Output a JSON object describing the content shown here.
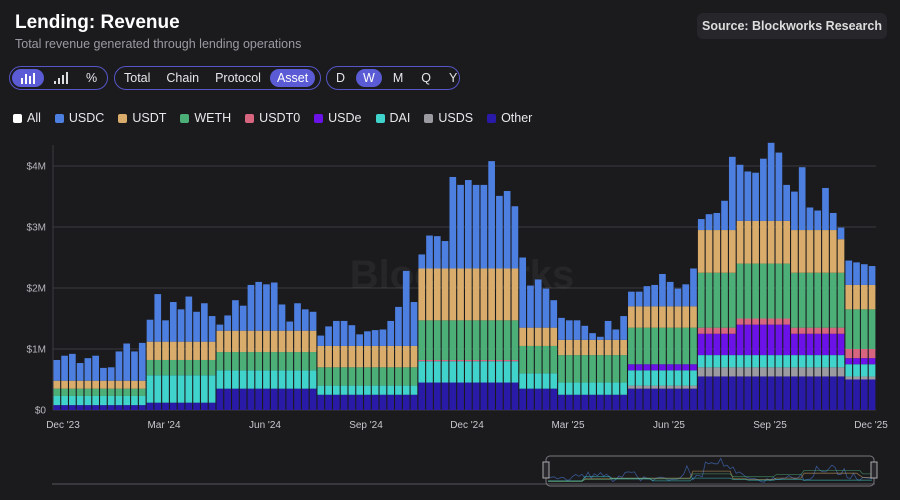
{
  "header": {
    "title": "Lending: Revenue",
    "subtitle": "Total revenue generated through lending operations",
    "source": "Source: Blockworks Research"
  },
  "toolbar": {
    "chart_types": [
      {
        "icon": "bar-chart-icon",
        "active": true
      },
      {
        "icon": "ascending-bars-icon",
        "active": false
      },
      {
        "icon": "percent-icon",
        "label": "%",
        "active": false
      }
    ],
    "breakdown": [
      {
        "label": "Total",
        "active": false
      },
      {
        "label": "Chain",
        "active": false
      },
      {
        "label": "Protocol",
        "active": false
      },
      {
        "label": "Asset",
        "active": true
      }
    ],
    "interval": [
      {
        "label": "D",
        "active": false
      },
      {
        "label": "W",
        "active": true
      },
      {
        "label": "M",
        "active": false
      },
      {
        "label": "Q",
        "active": false
      },
      {
        "label": "Y",
        "active": false
      }
    ]
  },
  "legend": [
    {
      "label": "All",
      "color": "#ffffff"
    },
    {
      "label": "USDC",
      "color": "#4d7fe0"
    },
    {
      "label": "USDT",
      "color": "#d9ac6b"
    },
    {
      "label": "WETH",
      "color": "#4caf78"
    },
    {
      "label": "USDT0",
      "color": "#d8657f"
    },
    {
      "label": "USDe",
      "color": "#6a12e8"
    },
    {
      "label": "DAI",
      "color": "#3fd3cc"
    },
    {
      "label": "USDS",
      "color": "#9a9aa0"
    },
    {
      "label": "Other",
      "color": "#2a1aa8"
    }
  ],
  "watermark": "Blockworks",
  "chart_data": {
    "type": "bar",
    "stacked": true,
    "interval": "weekly",
    "title": "Lending: Revenue",
    "xlabel": "",
    "ylabel": "",
    "ylim": [
      0,
      4400000
    ],
    "unit": "USD millions",
    "grid": true,
    "legend_position": "top-left",
    "yticks": [
      "$0",
      "$1M",
      "$2M",
      "$3M",
      "$4M"
    ],
    "xticks": [
      "Dec '23",
      "Mar '24",
      "Jun '24",
      "Sep '24",
      "Dec '24",
      "Mar '25",
      "Jun '25",
      "Sep '25",
      "Dec '25"
    ],
    "series": [
      {
        "name": "Other",
        "values": [
          0.08,
          0.08,
          0.08,
          0.08,
          0.08,
          0.08,
          0.08,
          0.08,
          0.08,
          0.08,
          0.08,
          0.08,
          0.12,
          0.12,
          0.12,
          0.12,
          0.12,
          0.12,
          0.12,
          0.12,
          0.12,
          0.35,
          0.35,
          0.35,
          0.35,
          0.35,
          0.35,
          0.35,
          0.35,
          0.35,
          0.35,
          0.35,
          0.35,
          0.35,
          0.25,
          0.25,
          0.25,
          0.25,
          0.25,
          0.25,
          0.25,
          0.25,
          0.25,
          0.25,
          0.25,
          0.25,
          0.25,
          0.45,
          0.45,
          0.45,
          0.45,
          0.45,
          0.45,
          0.45,
          0.45,
          0.45,
          0.45,
          0.45,
          0.45,
          0.45,
          0.35,
          0.35,
          0.35,
          0.35,
          0.35,
          0.25,
          0.25,
          0.25,
          0.25,
          0.25,
          0.25,
          0.25,
          0.25,
          0.25,
          0.35,
          0.35,
          0.35,
          0.35,
          0.35,
          0.35,
          0.35,
          0.35,
          0.35,
          0.55,
          0.55,
          0.55,
          0.55,
          0.55,
          0.55,
          0.55,
          0.55,
          0.55,
          0.55,
          0.55,
          0.55,
          0.55,
          0.55,
          0.55,
          0.55,
          0.55,
          0.55,
          0.55,
          0.5,
          0.5,
          0.5,
          0.5
        ]
      },
      {
        "name": "USDS",
        "values": [
          0,
          0,
          0,
          0,
          0,
          0,
          0,
          0,
          0,
          0,
          0,
          0,
          0,
          0,
          0,
          0,
          0,
          0,
          0,
          0,
          0,
          0,
          0,
          0,
          0,
          0,
          0,
          0,
          0,
          0,
          0,
          0,
          0,
          0,
          0,
          0,
          0,
          0,
          0,
          0,
          0,
          0,
          0,
          0,
          0,
          0,
          0,
          0,
          0,
          0,
          0,
          0,
          0,
          0,
          0,
          0,
          0,
          0,
          0,
          0,
          0,
          0,
          0,
          0,
          0,
          0,
          0,
          0,
          0,
          0,
          0,
          0,
          0,
          0,
          0.05,
          0.05,
          0.05,
          0.05,
          0.05,
          0.05,
          0.05,
          0.05,
          0.05,
          0.15,
          0.15,
          0.15,
          0.15,
          0.15,
          0.15,
          0.15,
          0.15,
          0.15,
          0.15,
          0.15,
          0.15,
          0.15,
          0.15,
          0.15,
          0.15,
          0.15,
          0.15,
          0.15,
          0.05,
          0.05,
          0.05,
          0.05
        ]
      },
      {
        "name": "DAI",
        "values": [
          0.15,
          0.15,
          0.15,
          0.15,
          0.15,
          0.15,
          0.15,
          0.15,
          0.15,
          0.15,
          0.15,
          0.15,
          0.45,
          0.45,
          0.45,
          0.45,
          0.45,
          0.45,
          0.45,
          0.45,
          0.45,
          0.3,
          0.3,
          0.3,
          0.3,
          0.3,
          0.3,
          0.3,
          0.3,
          0.3,
          0.3,
          0.3,
          0.3,
          0.3,
          0.15,
          0.15,
          0.15,
          0.15,
          0.15,
          0.15,
          0.15,
          0.15,
          0.15,
          0.15,
          0.15,
          0.15,
          0.15,
          0.35,
          0.35,
          0.35,
          0.35,
          0.35,
          0.35,
          0.35,
          0.35,
          0.35,
          0.35,
          0.35,
          0.35,
          0.35,
          0.25,
          0.25,
          0.25,
          0.25,
          0.25,
          0.2,
          0.2,
          0.2,
          0.2,
          0.2,
          0.2,
          0.2,
          0.2,
          0.2,
          0.25,
          0.25,
          0.25,
          0.25,
          0.25,
          0.25,
          0.25,
          0.25,
          0.25,
          0.2,
          0.2,
          0.2,
          0.2,
          0.2,
          0.2,
          0.2,
          0.2,
          0.2,
          0.2,
          0.2,
          0.2,
          0.2,
          0.2,
          0.2,
          0.2,
          0.2,
          0.2,
          0.2,
          0.2,
          0.2,
          0.2,
          0.2
        ]
      },
      {
        "name": "USDe",
        "values": [
          0,
          0,
          0,
          0,
          0,
          0,
          0,
          0,
          0,
          0,
          0,
          0,
          0,
          0,
          0,
          0,
          0,
          0,
          0,
          0,
          0,
          0,
          0,
          0,
          0,
          0,
          0,
          0,
          0,
          0,
          0,
          0,
          0,
          0,
          0,
          0,
          0,
          0,
          0,
          0,
          0,
          0,
          0,
          0,
          0,
          0,
          0,
          0,
          0,
          0,
          0,
          0,
          0,
          0,
          0,
          0,
          0,
          0,
          0,
          0,
          0,
          0,
          0,
          0,
          0,
          0,
          0,
          0,
          0,
          0,
          0,
          0,
          0,
          0,
          0.1,
          0.1,
          0.1,
          0.1,
          0.1,
          0.1,
          0.1,
          0.1,
          0.1,
          0.35,
          0.35,
          0.35,
          0.35,
          0.35,
          0.5,
          0.5,
          0.5,
          0.5,
          0.5,
          0.5,
          0.5,
          0.35,
          0.35,
          0.35,
          0.35,
          0.35,
          0.35,
          0.35,
          0.1,
          0.1,
          0.1,
          0.1
        ]
      },
      {
        "name": "USDT0",
        "values": [
          0,
          0,
          0,
          0,
          0,
          0,
          0,
          0,
          0,
          0,
          0,
          0,
          0,
          0,
          0,
          0,
          0,
          0,
          0,
          0,
          0,
          0,
          0,
          0,
          0,
          0,
          0,
          0,
          0,
          0,
          0,
          0,
          0,
          0,
          0,
          0,
          0,
          0,
          0,
          0,
          0,
          0,
          0,
          0,
          0,
          0,
          0,
          0.02,
          0.02,
          0.02,
          0.02,
          0.02,
          0.02,
          0.02,
          0.02,
          0.02,
          0.02,
          0.02,
          0.02,
          0.02,
          0,
          0,
          0,
          0,
          0,
          0,
          0,
          0,
          0,
          0,
          0,
          0,
          0,
          0,
          0,
          0,
          0,
          0,
          0,
          0,
          0,
          0,
          0,
          0.1,
          0.1,
          0.1,
          0.1,
          0.1,
          0.1,
          0.1,
          0.1,
          0.1,
          0.1,
          0.1,
          0.1,
          0.1,
          0.1,
          0.1,
          0.1,
          0.1,
          0.1,
          0.1,
          0.15,
          0.15,
          0.15,
          0.15
        ]
      },
      {
        "name": "WETH",
        "values": [
          0.12,
          0.12,
          0.12,
          0.12,
          0.12,
          0.12,
          0.12,
          0.12,
          0.12,
          0.12,
          0.12,
          0.12,
          0.25,
          0.25,
          0.25,
          0.25,
          0.25,
          0.25,
          0.25,
          0.25,
          0.25,
          0.3,
          0.3,
          0.3,
          0.3,
          0.3,
          0.3,
          0.3,
          0.3,
          0.3,
          0.3,
          0.3,
          0.3,
          0.3,
          0.3,
          0.3,
          0.3,
          0.3,
          0.3,
          0.3,
          0.3,
          0.3,
          0.3,
          0.3,
          0.3,
          0.3,
          0.3,
          0.65,
          0.65,
          0.65,
          0.65,
          0.65,
          0.65,
          0.65,
          0.65,
          0.65,
          0.65,
          0.65,
          0.65,
          0.65,
          0.45,
          0.45,
          0.45,
          0.45,
          0.45,
          0.45,
          0.45,
          0.45,
          0.45,
          0.45,
          0.45,
          0.45,
          0.45,
          0.45,
          0.6,
          0.6,
          0.6,
          0.6,
          0.6,
          0.6,
          0.6,
          0.6,
          0.6,
          0.9,
          0.9,
          0.9,
          0.9,
          0.9,
          0.9,
          0.9,
          0.9,
          0.9,
          0.9,
          0.9,
          0.9,
          0.9,
          0.9,
          0.9,
          0.9,
          0.9,
          0.9,
          0.9,
          0.65,
          0.65,
          0.65,
          0.65
        ]
      },
      {
        "name": "USDT",
        "values": [
          0.13,
          0.13,
          0.13,
          0.13,
          0.13,
          0.13,
          0.13,
          0.13,
          0.13,
          0.13,
          0.13,
          0.13,
          0.3,
          0.3,
          0.3,
          0.3,
          0.3,
          0.3,
          0.3,
          0.3,
          0.3,
          0.35,
          0.35,
          0.35,
          0.35,
          0.35,
          0.35,
          0.35,
          0.35,
          0.35,
          0.35,
          0.35,
          0.35,
          0.35,
          0.35,
          0.35,
          0.35,
          0.35,
          0.35,
          0.35,
          0.35,
          0.35,
          0.35,
          0.35,
          0.35,
          0.35,
          0.35,
          0.85,
          0.85,
          0.85,
          0.85,
          0.85,
          0.85,
          0.85,
          0.85,
          0.85,
          0.85,
          0.85,
          0.85,
          0.85,
          0.3,
          0.3,
          0.3,
          0.3,
          0.3,
          0.25,
          0.25,
          0.25,
          0.25,
          0.25,
          0.25,
          0.25,
          0.25,
          0.25,
          0.35,
          0.35,
          0.35,
          0.35,
          0.35,
          0.35,
          0.35,
          0.35,
          0.35,
          0.7,
          0.7,
          0.7,
          0.7,
          0.7,
          0.7,
          0.7,
          0.7,
          0.7,
          0.7,
          0.7,
          0.7,
          0.7,
          0.7,
          0.7,
          0.7,
          0.7,
          0.7,
          0.55,
          0.4,
          0.4,
          0.4,
          0.4
        ]
      },
      {
        "name": "USDC",
        "values": [
          0.34,
          0.41,
          0.44,
          0.29,
          0.37,
          0.41,
          0.21,
          0.22,
          0.48,
          0.61,
          0.48,
          0.62,
          0.36,
          0.78,
          0.35,
          0.65,
          0.53,
          0.74,
          0.49,
          0.63,
          0.42,
          0.1,
          0.25,
          0.5,
          0.41,
          0.75,
          0.8,
          0.76,
          0.79,
          0.43,
          0.15,
          0.45,
          0.35,
          0.31,
          0.17,
          0.32,
          0.41,
          0.41,
          0.34,
          0.19,
          0.24,
          0.26,
          0.27,
          0.41,
          0.64,
          1.23,
          0.72,
          0.23,
          0.54,
          0.53,
          0.45,
          1.5,
          1.37,
          1.45,
          1.37,
          1.37,
          1.76,
          1.19,
          1.27,
          1.02,
          1.15,
          0.69,
          0.79,
          0.64,
          0.45,
          0.36,
          0.32,
          0.32,
          0.23,
          0.11,
          0.05,
          0.31,
          0.17,
          0.39,
          0.24,
          0.24,
          0.33,
          0.35,
          0.53,
          0.4,
          0.29,
          0.36,
          0.62,
          0.18,
          0.26,
          0.28,
          0.48,
          1.2,
          0.92,
          0.81,
          0.79,
          1.02,
          1.28,
          1.12,
          0.59,
          0.63,
          1.03,
          0.37,
          0.32,
          0.69,
          0.28,
          0.19,
          0.4,
          0.37,
          0.34,
          0.31
        ]
      }
    ]
  }
}
